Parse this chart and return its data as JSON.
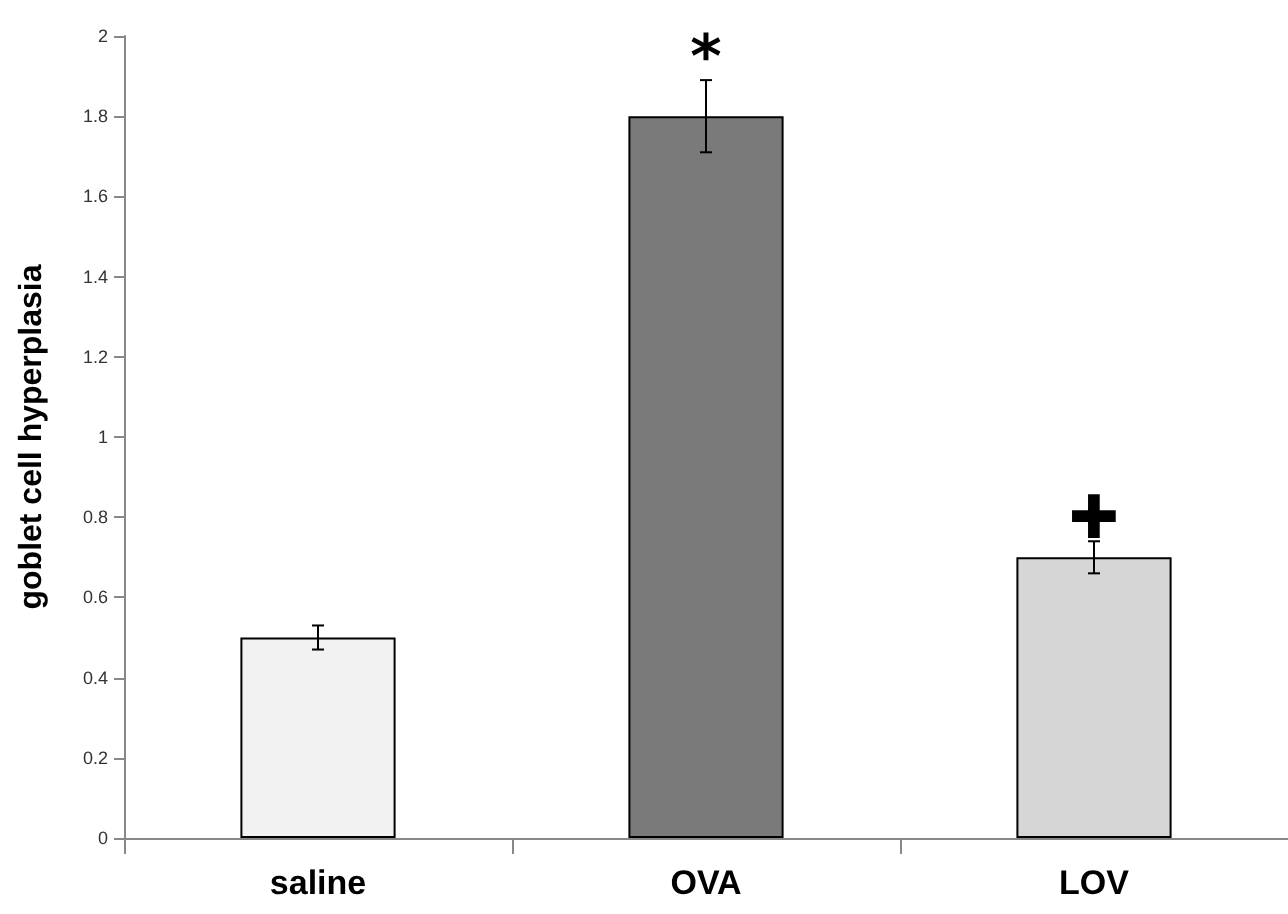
{
  "chart_data": {
    "type": "bar",
    "ylabel": "goblet cell hyperplasia",
    "categories": [
      "saline",
      "OVA",
      "LOV"
    ],
    "values": [
      0.5,
      1.8,
      0.7
    ],
    "colors": [
      "#f2f2f2",
      "#7a7a7a",
      "#d6d6d6"
    ],
    "errors": [
      0.03,
      0.09,
      0.04
    ],
    "ylim": [
      0,
      2
    ],
    "yticks": [
      0,
      0.2,
      0.4,
      0.6,
      0.8,
      1,
      1.2,
      1.4,
      1.6,
      1.8,
      2
    ],
    "grid": false,
    "annotations": [
      {
        "text": "*",
        "x": "OVA",
        "y": 1.89
      },
      {
        "text": "✚",
        "x": "LOV",
        "y": 0.74
      }
    ]
  }
}
